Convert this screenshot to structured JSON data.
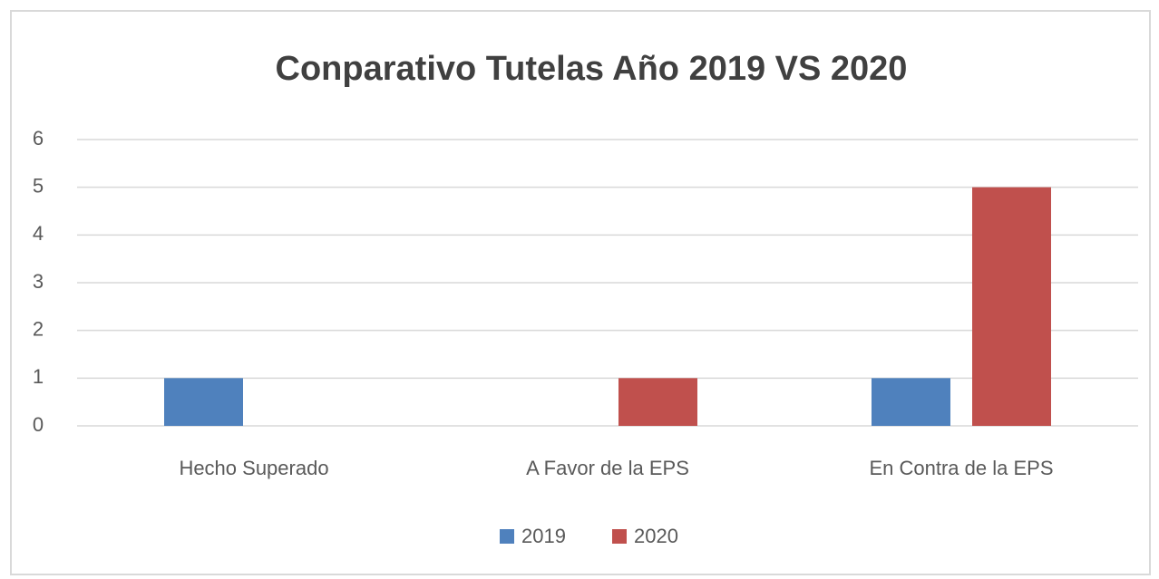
{
  "chart_data": {
    "type": "bar",
    "title": "Conparativo Tutelas Año 2019 VS 2020",
    "categories": [
      "Hecho Superado",
      "A Favor de la EPS",
      "En Contra de la EPS"
    ],
    "series": [
      {
        "name": "2019",
        "color": "#4f81bd",
        "values": [
          1,
          0,
          1
        ]
      },
      {
        "name": "2020",
        "color": "#c0504d",
        "values": [
          0,
          1,
          5
        ]
      }
    ],
    "ylim": [
      0,
      6
    ],
    "yticks": [
      0,
      1,
      2,
      3,
      4,
      5,
      6
    ],
    "grid": true,
    "legend": "bottom"
  }
}
